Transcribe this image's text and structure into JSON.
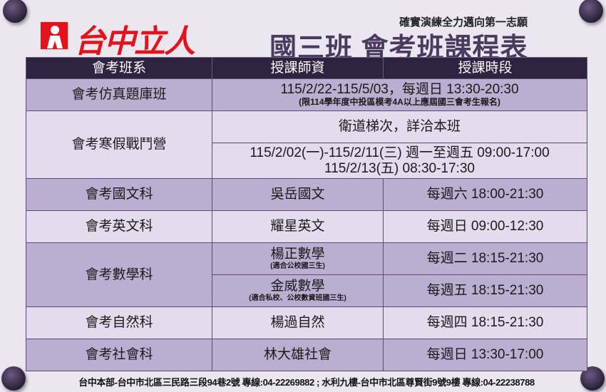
{
  "brand": {
    "logo_text": "台中立人",
    "slogan": "確實演練全力邁向第一志願"
  },
  "title": "國三班 會考班課程表",
  "table": {
    "headers": [
      "會考班系",
      "授課師資",
      "授課時段"
    ],
    "rows": [
      {
        "course": "會考仿真題庫班",
        "detail": "115/2/22-115/5/03，每週日 13:30-20:30",
        "note": "(限114學年度中投區模考4A以上應屆國三會考生報名)"
      },
      {
        "course": "會考寒假戰鬥營",
        "detail": "衛道梯次，詳洽本班",
        "line1": "115/2/02(一)-115/2/11(三) 週一至週五 09:00-17:00",
        "line2": "115/2/13(五) 08:30-17:30"
      },
      {
        "course": "會考國文科",
        "teacher": "吳岳國文",
        "time": "每週六 18:00-21:30"
      },
      {
        "course": "會考英文科",
        "teacher": "耀星英文",
        "time": "每週日 09:00-12:30"
      },
      {
        "course": "會考數學科",
        "sessions": [
          {
            "teacher": "楊正數學",
            "note": "(適合公校國三生)",
            "time": "每週二 18:15-21:30"
          },
          {
            "teacher": "金威數學",
            "note": "(適合私校、公校數資班國三生)",
            "time": "每週五 18:15-21:30"
          }
        ]
      },
      {
        "course": "會考自然科",
        "teacher": "楊過自然",
        "time": "每週四 18:15-21:30"
      },
      {
        "course": "會考社會科",
        "teacher": "林大雄社會",
        "time": "每週日 13:30-17:00"
      }
    ]
  },
  "footer": "台中本部-台中市北區三民路三段94巷2號   專線:04-22269882 ; 水利九樓-台中市北區尊賢街9號9樓   專線:04-22238788",
  "colors": {
    "header": "#2e2340",
    "row_dark": "#bcaed0",
    "row_light": "#e4dcee",
    "title": "#4a3a5e",
    "logo": "#e3131b"
  }
}
